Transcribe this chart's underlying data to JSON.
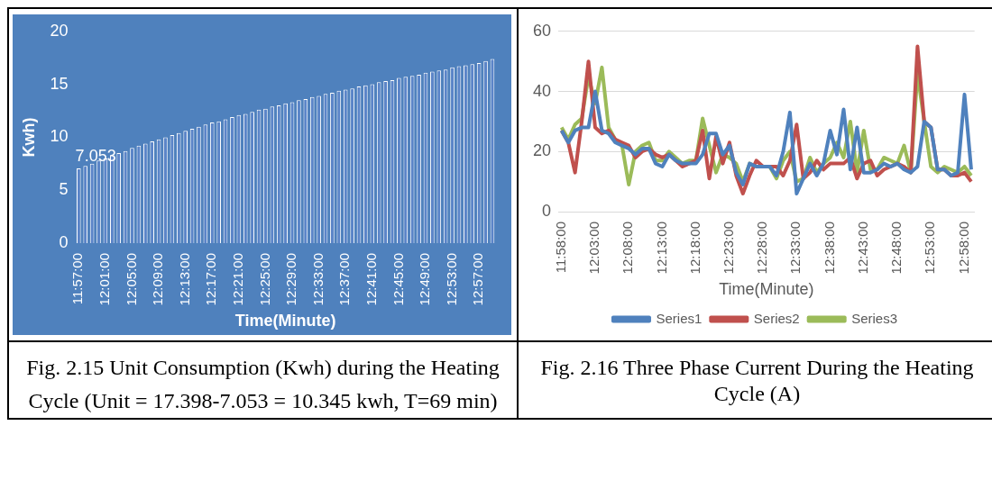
{
  "chart_data": [
    {
      "type": "bar",
      "ylabel": "Kwh)",
      "xlabel": "Time(Minute)",
      "color": "#5b84c8",
      "ylim": [
        0,
        20
      ],
      "yticks": [
        0,
        5,
        10,
        15,
        20
      ],
      "grid": false,
      "legend": false,
      "categories": [
        "11:57:00",
        null,
        null,
        null,
        "12:01:00",
        null,
        null,
        null,
        "12:05:00",
        null,
        null,
        null,
        "12:09:00",
        null,
        null,
        null,
        "12:13:00",
        null,
        null,
        null,
        "12:17:00",
        null,
        null,
        null,
        "12:21:00",
        null,
        null,
        null,
        "12:25:00",
        null,
        null,
        null,
        "12:29:00",
        null,
        null,
        null,
        "12:33:00",
        null,
        null,
        null,
        "12:37:00",
        null,
        null,
        null,
        "12:41:00",
        null,
        null,
        null,
        "12:45:00",
        null,
        null,
        null,
        "12:49:00",
        null,
        null,
        null,
        "12:53:00",
        null,
        null,
        null,
        "12:57:00",
        null,
        null
      ],
      "values": [
        7.053,
        7.3,
        7.5,
        7.8,
        8.0,
        8.3,
        8.5,
        8.7,
        9.0,
        9.2,
        9.4,
        9.6,
        9.8,
        10.0,
        10.2,
        10.4,
        10.6,
        10.8,
        11.0,
        11.2,
        11.4,
        11.5,
        11.7,
        11.9,
        12.1,
        12.2,
        12.4,
        12.6,
        12.7,
        12.9,
        13.0,
        13.2,
        13.3,
        13.5,
        13.6,
        13.8,
        13.9,
        14.1,
        14.2,
        14.4,
        14.5,
        14.6,
        14.8,
        14.9,
        15.0,
        15.2,
        15.3,
        15.4,
        15.6,
        15.7,
        15.8,
        15.9,
        16.1,
        16.2,
        16.3,
        16.4,
        16.6,
        16.7,
        16.8,
        16.9,
        17.0,
        17.2,
        17.4
      ],
      "annotations": [
        {
          "text": "7.053",
          "y": 7.053
        },
        "Fig. 2.15 Unit Consumption (Kwh) during the Heating",
        "Cycle (Unit = 17.398-7.053 = 10.345 kwh, T=69 min)"
      ]
    },
    {
      "type": "line",
      "xlabel": "Time(Minute)",
      "ylim": [
        0,
        60
      ],
      "yticks": [
        0,
        20,
        40,
        60
      ],
      "grid": "y",
      "legend": "bottom",
      "marker": "none",
      "line_style": "solid",
      "categories": [
        "11:58:00",
        null,
        null,
        null,
        null,
        "12:03:00",
        null,
        null,
        null,
        null,
        "12:08:00",
        null,
        null,
        null,
        null,
        "12:13:00",
        null,
        null,
        null,
        null,
        "12:18:00",
        null,
        null,
        null,
        null,
        "12:23:00",
        null,
        null,
        null,
        null,
        "12:28:00",
        null,
        null,
        null,
        null,
        "12:33:00",
        null,
        null,
        null,
        null,
        "12:38:00",
        null,
        null,
        null,
        null,
        "12:43:00",
        null,
        null,
        null,
        null,
        "12:48:00",
        null,
        null,
        null,
        null,
        "12:53:00",
        null,
        null,
        null,
        null,
        "12:58:00",
        null
      ],
      "series": [
        {
          "name": "Series1",
          "color": "#4f81bd",
          "values": [
            27,
            23,
            27,
            28,
            28,
            40,
            27,
            26,
            23,
            22,
            21,
            19,
            21,
            21,
            16,
            15,
            19,
            17,
            16,
            16,
            16,
            19,
            26,
            26,
            19,
            22,
            13,
            9,
            16,
            15,
            15,
            15,
            12,
            20,
            33,
            6,
            11,
            16,
            12,
            16,
            27,
            19,
            34,
            14,
            28,
            13,
            13,
            14,
            16,
            15,
            16,
            14,
            13,
            15,
            30,
            28,
            14,
            14,
            12,
            13,
            39,
            14
          ]
        },
        {
          "name": "Series2",
          "color": "#c0504d",
          "values": [
            27,
            23,
            13,
            30,
            50,
            28,
            26,
            27,
            24,
            23,
            22,
            18,
            20,
            21,
            19,
            18,
            19,
            17,
            15,
            16,
            17,
            27,
            11,
            25,
            16,
            23,
            12,
            6,
            12,
            17,
            15,
            15,
            15,
            12,
            17,
            29,
            11,
            13,
            17,
            14,
            16,
            16,
            16,
            18,
            11,
            16,
            17,
            12,
            14,
            15,
            16,
            15,
            13,
            55,
            30,
            28,
            14,
            14,
            12,
            12,
            13,
            10
          ]
        },
        {
          "name": "Series3",
          "color": "#9bbb59",
          "values": [
            28,
            24,
            29,
            31,
            45,
            36,
            48,
            28,
            24,
            22,
            9,
            20,
            22,
            23,
            17,
            17,
            20,
            18,
            16,
            17,
            17,
            31,
            22,
            13,
            19,
            18,
            16,
            10,
            16,
            15,
            15,
            15,
            11,
            17,
            20,
            10,
            11,
            18,
            13,
            16,
            18,
            23,
            18,
            30,
            13,
            27,
            14,
            14,
            18,
            17,
            16,
            22,
            13,
            46,
            30,
            15,
            13,
            15,
            14,
            13,
            15,
            12
          ]
        }
      ],
      "annotations": [
        "Fig. 2.16 Three Phase Current During the Heating Cycle (A)"
      ]
    }
  ]
}
